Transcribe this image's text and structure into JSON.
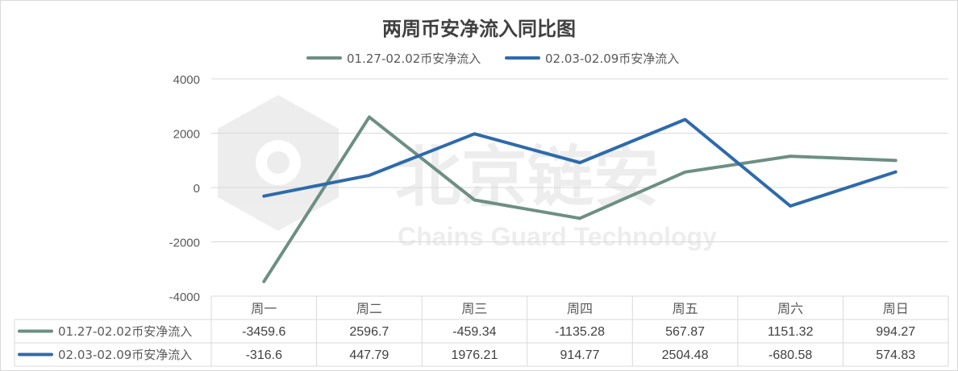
{
  "chart_data": {
    "type": "line",
    "title": "两周币安净流入同比图",
    "categories": [
      "周一",
      "周二",
      "周三",
      "周四",
      "周五",
      "周六",
      "周日"
    ],
    "series": [
      {
        "name": "01.27-02.02币安净流入",
        "color": "#6d8f84",
        "values": [
          -3459.6,
          2596.7,
          -459.34,
          -1135.28,
          567.87,
          1151.32,
          994.27
        ],
        "labels": [
          "-3459.6",
          "2596.7",
          "-459.34",
          "-1135.28",
          "567.87",
          "1151.32",
          "994.27"
        ]
      },
      {
        "name": "02.03-02.09币安净流入",
        "color": "#2e6aab",
        "values": [
          -316.6,
          447.79,
          1976.21,
          914.77,
          2504.48,
          -680.58,
          574.83
        ],
        "labels": [
          "-316.6",
          "447.79",
          "1976.21",
          "914.77",
          "2504.48",
          "-680.58",
          "574.83"
        ]
      }
    ],
    "ylim": [
      -4000,
      4000
    ],
    "yticks": [
      "4000",
      "2000",
      "0",
      "-2000",
      "-4000"
    ],
    "yticks_values": [
      4000,
      2000,
      0,
      -2000,
      -4000
    ],
    "grid": true,
    "legend": "top-center",
    "data_table": true
  },
  "watermark": {
    "text_cn": "北京链安",
    "text_en": "Chains Guard Technology"
  }
}
